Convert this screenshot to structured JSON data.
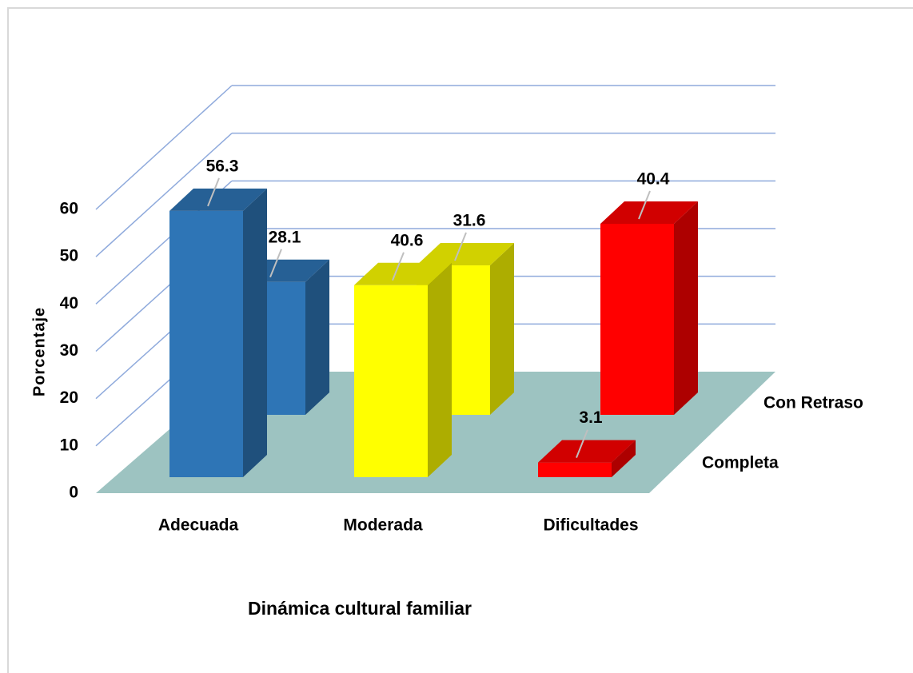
{
  "chart_data": {
    "type": "bar3d",
    "x_label": "Dinámica cultural familiar",
    "y_label": "Porcentaje",
    "categories": [
      "Adecuada",
      "Moderada",
      "Dificultades"
    ],
    "colors": [
      "#2e75b6",
      "#ffff00",
      "#ff0000"
    ],
    "series": [
      {
        "name": "Completa",
        "values": [
          56.3,
          40.6,
          3.1
        ]
      },
      {
        "name": "Con Retraso",
        "values": [
          28.1,
          31.6,
          40.4
        ]
      }
    ],
    "ylim": [
      0,
      60
    ],
    "yticks": [
      0,
      10,
      20,
      30,
      40,
      50,
      60
    ],
    "grid": true
  }
}
